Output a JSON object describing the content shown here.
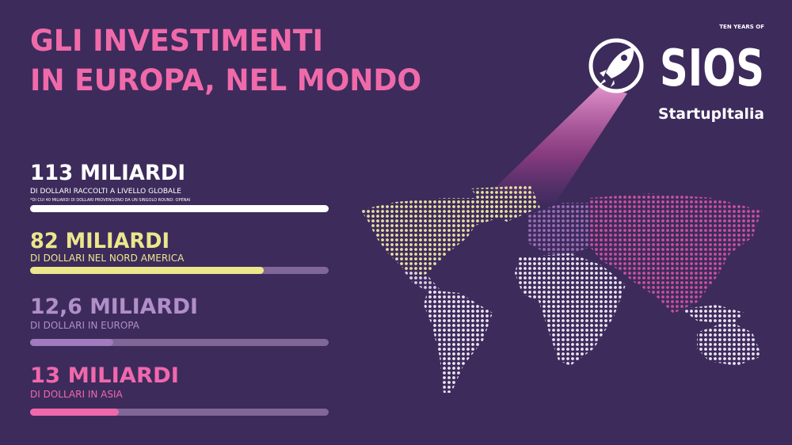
{
  "header": {
    "title_lines": [
      "GLI INVESTIMENTI",
      "IN EUROPA, NEL MONDO"
    ]
  },
  "logo": {
    "tagline": "TEN YEARS OF",
    "name": "SIOS",
    "brand": "StartupItalia"
  },
  "stats": [
    {
      "headline": "113 MILIARDI",
      "subtitle": "DI DOLLARI RACCOLTI A LIVELLO GLOBALE",
      "note": "*DI CUI 40 MILIARDI DI DOLLARI PROVENGONO DA UN SINGOLO ROUND: OPENAI"
    },
    {
      "headline": "82 MILIARDI",
      "subtitle": "DI DOLLARI NEL NORD AMERICA"
    },
    {
      "headline": "12,6 MILIARDI",
      "subtitle": "DI DOLLARI IN EUROPA"
    },
    {
      "headline": "13 MILIARDI",
      "subtitle": "DI DOLLARI IN ASIA"
    }
  ]
}
